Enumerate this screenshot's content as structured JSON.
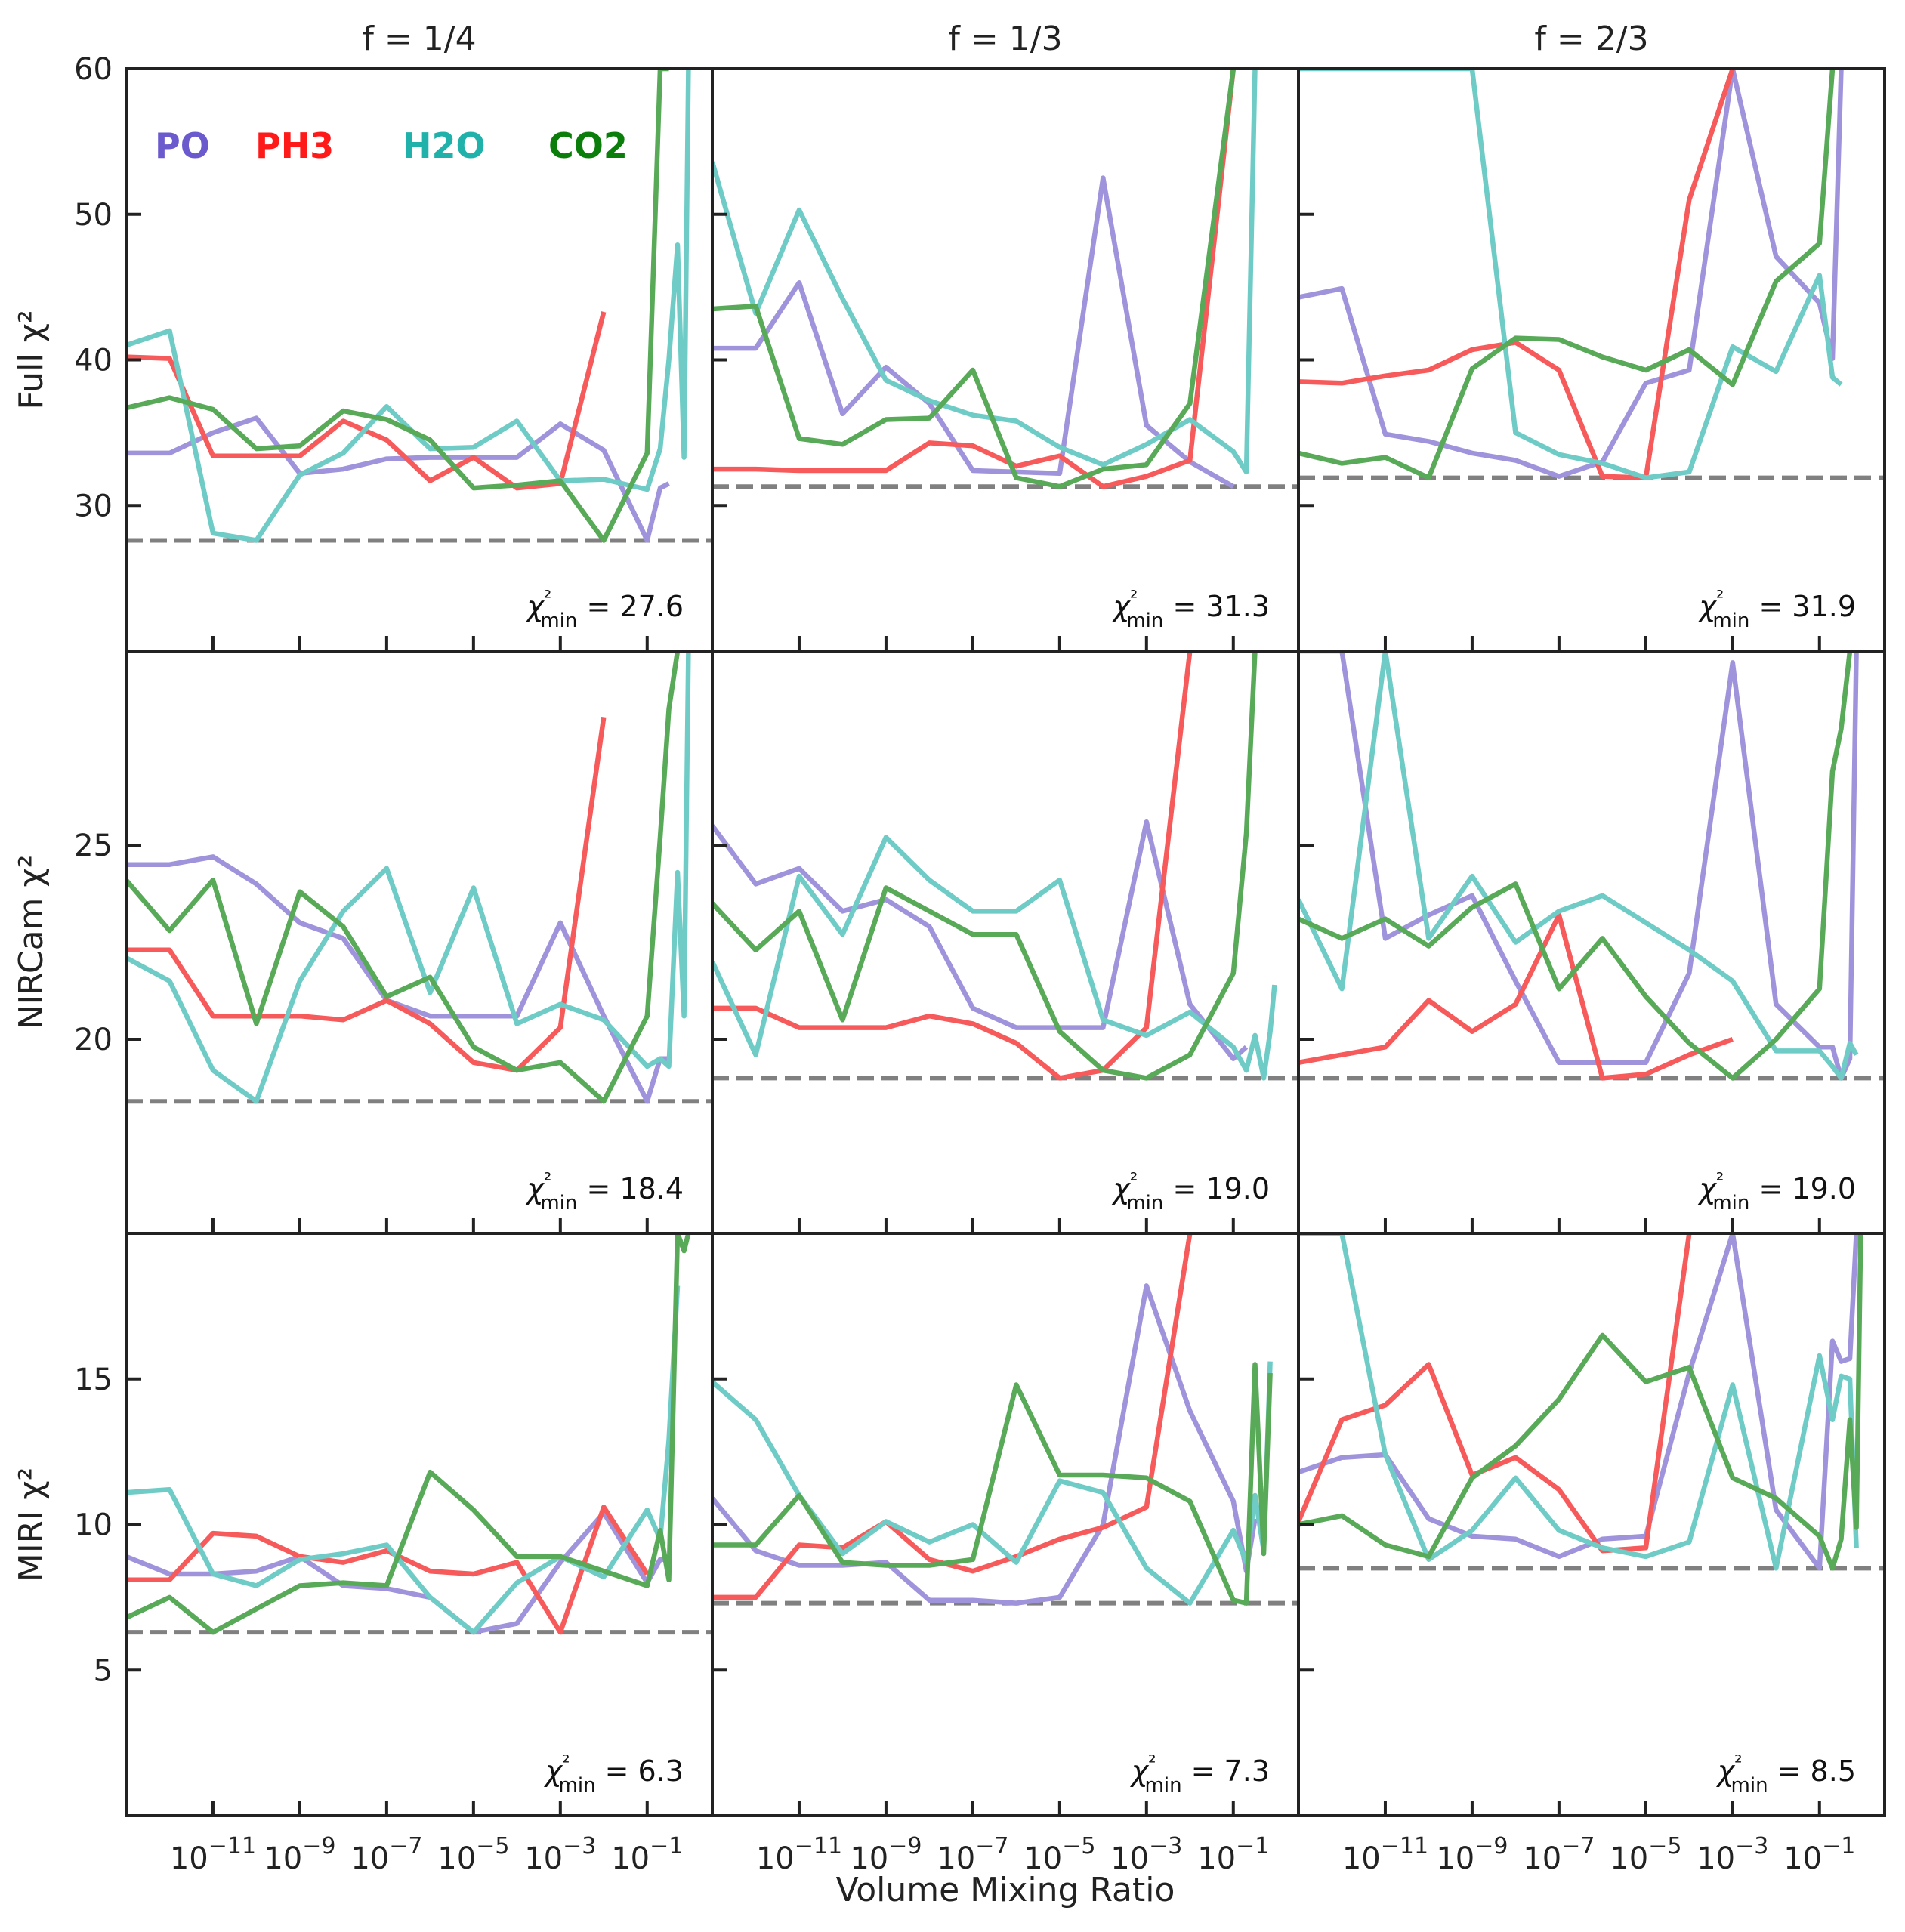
{
  "figure": {
    "xlabel": "Volume Mixing Ratio",
    "legend": [
      {
        "name": "PO",
        "color": "#6a5acd"
      },
      {
        "name": "PH3",
        "color": "#ff1a1a"
      },
      {
        "name": "H2O",
        "color": "#20b2aa"
      },
      {
        "name": "CO2",
        "color": "#0a7d0a"
      }
    ]
  },
  "chart_data": {
    "type": "line",
    "xscale": "log",
    "xlim_log10": [
      -13.0,
      0.5
    ],
    "xtick_log10": [
      -11,
      -9,
      -7,
      -5,
      -3,
      -1
    ],
    "xtick_labels": [
      "10−11",
      "10−9",
      "10−7",
      "10−5",
      "10−3",
      "10−1"
    ],
    "x_log10": [
      -13,
      -12,
      -11,
      -10,
      -9,
      -8,
      -7,
      -6,
      -5,
      -4,
      -3,
      -2,
      -1,
      -0.7,
      -0.5,
      -0.3,
      -0.15,
      -0.05
    ],
    "columns": [
      "f = 1/4",
      "f = 1/3",
      "f = 2/3"
    ],
    "rows": [
      {
        "ylabel": "Full χ²",
        "ylim": [
          20,
          60
        ],
        "yticks": [
          30,
          40,
          50,
          60
        ]
      },
      {
        "ylabel": "NIRCam χ²",
        "ylim": [
          15,
          30
        ],
        "yticks": [
          20,
          25
        ]
      },
      {
        "ylabel": "MIRI χ²",
        "ylim": [
          0,
          20
        ],
        "yticks": [
          5,
          10,
          15
        ]
      }
    ],
    "series_colors": {
      "PO": "#9f94dc",
      "PH3": "#f65a5a",
      "H2O": "#6ecbc6",
      "CO2": "#58a958"
    },
    "panels": [
      {
        "row": 0,
        "col": 0,
        "chi2_label": "χ²min = 27.6",
        "chi2_min": 27.6,
        "series": {
          "PO": [
            33.6,
            33.6,
            35.0,
            36.0,
            32.2,
            32.5,
            33.2,
            33.3,
            33.3,
            33.3,
            35.6,
            33.8,
            27.6,
            31.2,
            31.5,
            null,
            null,
            null
          ],
          "PH3": [
            40.2,
            40.1,
            33.4,
            33.4,
            33.4,
            35.8,
            34.5,
            31.7,
            33.3,
            31.2,
            31.5,
            43.3,
            null,
            null,
            null,
            null,
            null,
            null
          ],
          "H2O": [
            41.0,
            42.0,
            28.1,
            27.6,
            32.1,
            33.6,
            36.8,
            33.9,
            34.0,
            35.8,
            31.7,
            31.8,
            31.1,
            33.9,
            40.0,
            47.9,
            33.3,
            60.0
          ],
          "CO2": [
            36.7,
            37.4,
            36.6,
            33.9,
            34.1,
            36.5,
            35.9,
            34.5,
            31.2,
            31.4,
            31.7,
            27.6,
            33.6,
            60.0,
            60.0,
            null,
            null,
            null
          ]
        }
      },
      {
        "row": 0,
        "col": 1,
        "chi2_label": "χ²min = 31.3",
        "chi2_min": 31.3,
        "series": {
          "PO": [
            40.8,
            40.8,
            45.3,
            36.3,
            39.5,
            37.0,
            32.4,
            32.3,
            32.2,
            52.5,
            35.5,
            33.0,
            31.3,
            null,
            null,
            null,
            null,
            null
          ],
          "PH3": [
            32.5,
            32.5,
            32.4,
            32.4,
            32.4,
            34.3,
            34.1,
            32.7,
            33.4,
            31.3,
            32.0,
            33.1,
            60.0,
            null,
            null,
            null,
            null,
            null
          ],
          "H2O": [
            53.6,
            43.2,
            50.3,
            44.2,
            38.6,
            37.2,
            36.2,
            35.8,
            34.0,
            32.8,
            34.2,
            35.9,
            33.7,
            32.3,
            60.0,
            null,
            null,
            null
          ],
          "CO2": [
            43.5,
            43.7,
            34.6,
            34.2,
            35.9,
            36.0,
            39.3,
            31.9,
            31.3,
            32.5,
            32.8,
            37.0,
            60.0,
            null,
            null,
            null,
            null,
            null
          ]
        }
      },
      {
        "row": 0,
        "col": 2,
        "chi2_label": "χ²min = 31.9",
        "chi2_min": 31.9,
        "series": {
          "PO": [
            44.3,
            44.9,
            34.9,
            34.4,
            33.6,
            33.1,
            32.0,
            33.0,
            38.4,
            39.3,
            60.0,
            47.1,
            43.9,
            40.1,
            60.0,
            null,
            null,
            null
          ],
          "PH3": [
            38.5,
            38.4,
            38.9,
            39.3,
            40.7,
            41.2,
            39.3,
            32.0,
            31.9,
            51.0,
            60.0,
            null,
            null,
            null,
            null,
            null,
            null,
            null
          ],
          "H2O": [
            60.0,
            60.0,
            60.0,
            60.0,
            60.0,
            35.0,
            33.5,
            32.9,
            31.9,
            32.3,
            40.9,
            39.2,
            45.8,
            38.8,
            38.3,
            null,
            null,
            null
          ],
          "CO2": [
            33.6,
            32.9,
            33.3,
            31.9,
            39.4,
            41.5,
            41.4,
            40.2,
            39.3,
            40.7,
            38.3,
            45.4,
            48.0,
            60.0,
            null,
            null,
            null,
            null
          ]
        }
      },
      {
        "row": 1,
        "col": 0,
        "chi2_label": "χ²min = 18.4",
        "chi2_min": 18.4,
        "series": {
          "PO": [
            24.5,
            24.5,
            24.7,
            24.0,
            23.0,
            22.6,
            21.0,
            20.6,
            20.6,
            20.6,
            23.0,
            20.6,
            18.4,
            19.5,
            19.5,
            null,
            null,
            null
          ],
          "PH3": [
            22.3,
            22.3,
            20.6,
            20.6,
            20.6,
            20.5,
            21.0,
            20.4,
            19.4,
            19.2,
            20.3,
            28.3,
            null,
            null,
            null,
            null,
            null,
            null
          ],
          "H2O": [
            22.1,
            21.5,
            19.2,
            18.4,
            21.5,
            23.3,
            24.4,
            21.2,
            23.9,
            20.4,
            20.9,
            20.5,
            19.3,
            19.5,
            19.3,
            24.3,
            20.6,
            30.0
          ],
          "CO2": [
            24.1,
            22.8,
            24.1,
            20.4,
            23.8,
            22.9,
            21.1,
            21.6,
            19.8,
            19.2,
            19.4,
            18.4,
            20.6,
            25.2,
            28.5,
            30.0,
            null,
            null
          ]
        }
      },
      {
        "row": 1,
        "col": 1,
        "chi2_label": "χ²min = 19.0",
        "chi2_min": 19.0,
        "series": {
          "PO": [
            25.5,
            24.0,
            24.4,
            23.3,
            23.6,
            22.9,
            20.8,
            20.3,
            20.3,
            20.3,
            25.6,
            20.9,
            19.5,
            19.8,
            null,
            null,
            null,
            null
          ],
          "PH3": [
            20.8,
            20.8,
            20.3,
            20.3,
            20.3,
            20.6,
            20.4,
            19.9,
            19.0,
            19.2,
            20.3,
            30.0,
            null,
            null,
            null,
            null,
            null,
            null
          ],
          "H2O": [
            22.0,
            19.6,
            24.2,
            22.7,
            25.2,
            24.1,
            23.3,
            23.3,
            24.1,
            20.5,
            20.1,
            20.7,
            19.8,
            19.2,
            20.1,
            19.0,
            20.2,
            21.4
          ],
          "CO2": [
            23.5,
            22.3,
            23.3,
            20.5,
            23.9,
            23.3,
            22.7,
            22.7,
            20.2,
            19.2,
            19.0,
            19.6,
            21.7,
            25.3,
            30.0,
            null,
            null,
            null
          ]
        }
      },
      {
        "row": 1,
        "col": 2,
        "chi2_label": "χ²min = 19.0",
        "chi2_min": 19.0,
        "series": {
          "PO": [
            30.0,
            30.0,
            22.6,
            23.2,
            23.7,
            21.5,
            19.4,
            19.4,
            19.4,
            21.7,
            29.7,
            20.9,
            19.8,
            19.8,
            19.0,
            19.5,
            30.0,
            null
          ],
          "PH3": [
            19.4,
            19.6,
            19.8,
            21.0,
            20.2,
            20.9,
            23.2,
            19.0,
            19.1,
            19.6,
            20.0,
            null,
            null,
            null,
            null,
            null,
            null,
            null
          ],
          "H2O": [
            23.6,
            21.3,
            30.0,
            22.6,
            24.2,
            22.5,
            23.3,
            23.7,
            23.0,
            22.3,
            21.5,
            19.7,
            19.7,
            19.3,
            19.0,
            19.9,
            19.6,
            null
          ],
          "CO2": [
            23.1,
            22.6,
            23.1,
            22.4,
            23.4,
            24.0,
            21.3,
            22.6,
            21.1,
            19.9,
            19.0,
            20.0,
            21.3,
            26.9,
            28.0,
            30.0,
            null,
            null
          ]
        }
      },
      {
        "row": 2,
        "col": 0,
        "chi2_label": "χ²min = 6.3",
        "chi2_min": 6.3,
        "series": {
          "PO": [
            8.9,
            8.3,
            8.3,
            8.4,
            8.9,
            7.9,
            7.8,
            7.5,
            6.3,
            6.6,
            8.7,
            10.4,
            8.0,
            8.8,
            8.8,
            null,
            null,
            null
          ],
          "PH3": [
            8.1,
            8.1,
            9.7,
            9.6,
            8.9,
            8.7,
            9.1,
            8.4,
            8.3,
            8.7,
            6.3,
            10.6,
            8.3,
            null,
            null,
            null,
            null,
            null
          ],
          "H2O": [
            11.1,
            11.2,
            8.3,
            7.9,
            8.8,
            9.0,
            9.3,
            7.5,
            6.3,
            8.0,
            8.9,
            8.2,
            10.5,
            9.5,
            12.9,
            18.2,
            null,
            null
          ],
          "CO2": [
            6.8,
            7.5,
            6.3,
            7.1,
            7.9,
            8.0,
            7.9,
            11.8,
            10.5,
            8.9,
            8.9,
            8.4,
            7.9,
            9.8,
            8.1,
            20.0,
            19.4,
            20.0
          ]
        }
      },
      {
        "row": 2,
        "col": 1,
        "chi2_label": "χ²min = 7.3",
        "chi2_min": 7.3,
        "series": {
          "PO": [
            10.9,
            9.1,
            8.6,
            8.6,
            8.7,
            7.4,
            7.4,
            7.3,
            7.5,
            10.0,
            18.2,
            13.9,
            10.8,
            8.4,
            10.2,
            null,
            null,
            null
          ],
          "PH3": [
            7.5,
            7.5,
            9.3,
            9.2,
            10.1,
            8.8,
            8.4,
            8.9,
            9.5,
            9.9,
            10.6,
            20.0,
            null,
            null,
            null,
            null,
            null,
            null
          ],
          "H2O": [
            14.9,
            13.6,
            11.0,
            9.0,
            10.1,
            9.4,
            10.0,
            8.7,
            11.5,
            11.1,
            8.5,
            7.3,
            9.8,
            8.7,
            11.0,
            9.1,
            15.6,
            null
          ],
          "CO2": [
            9.3,
            9.3,
            11.0,
            8.7,
            8.6,
            8.6,
            8.8,
            14.8,
            11.7,
            11.7,
            11.6,
            10.8,
            7.4,
            7.3,
            15.5,
            9.0,
            15.2,
            null
          ]
        }
      },
      {
        "row": 2,
        "col": 2,
        "chi2_label": "χ²min = 8.5",
        "chi2_min": 8.5,
        "series": {
          "PO": [
            11.8,
            12.3,
            12.4,
            10.2,
            9.6,
            9.5,
            8.9,
            9.5,
            9.6,
            15.2,
            20.0,
            10.5,
            8.5,
            16.3,
            15.6,
            15.7,
            20.0,
            null
          ],
          "PH3": [
            10.1,
            13.6,
            14.1,
            15.5,
            11.7,
            12.3,
            11.2,
            9.1,
            9.2,
            20.0,
            null,
            null,
            null,
            null,
            null,
            null,
            null,
            null
          ],
          "H2O": [
            20.0,
            20.0,
            12.4,
            8.8,
            9.8,
            11.6,
            9.8,
            9.2,
            8.9,
            9.4,
            14.8,
            8.5,
            15.8,
            13.6,
            15.1,
            15.0,
            9.2,
            null
          ],
          "CO2": [
            10.0,
            10.3,
            9.3,
            8.9,
            11.6,
            12.7,
            14.3,
            16.5,
            14.9,
            15.4,
            11.6,
            10.9,
            9.6,
            8.5,
            9.5,
            13.6,
            9.9,
            20.0
          ]
        }
      }
    ]
  }
}
